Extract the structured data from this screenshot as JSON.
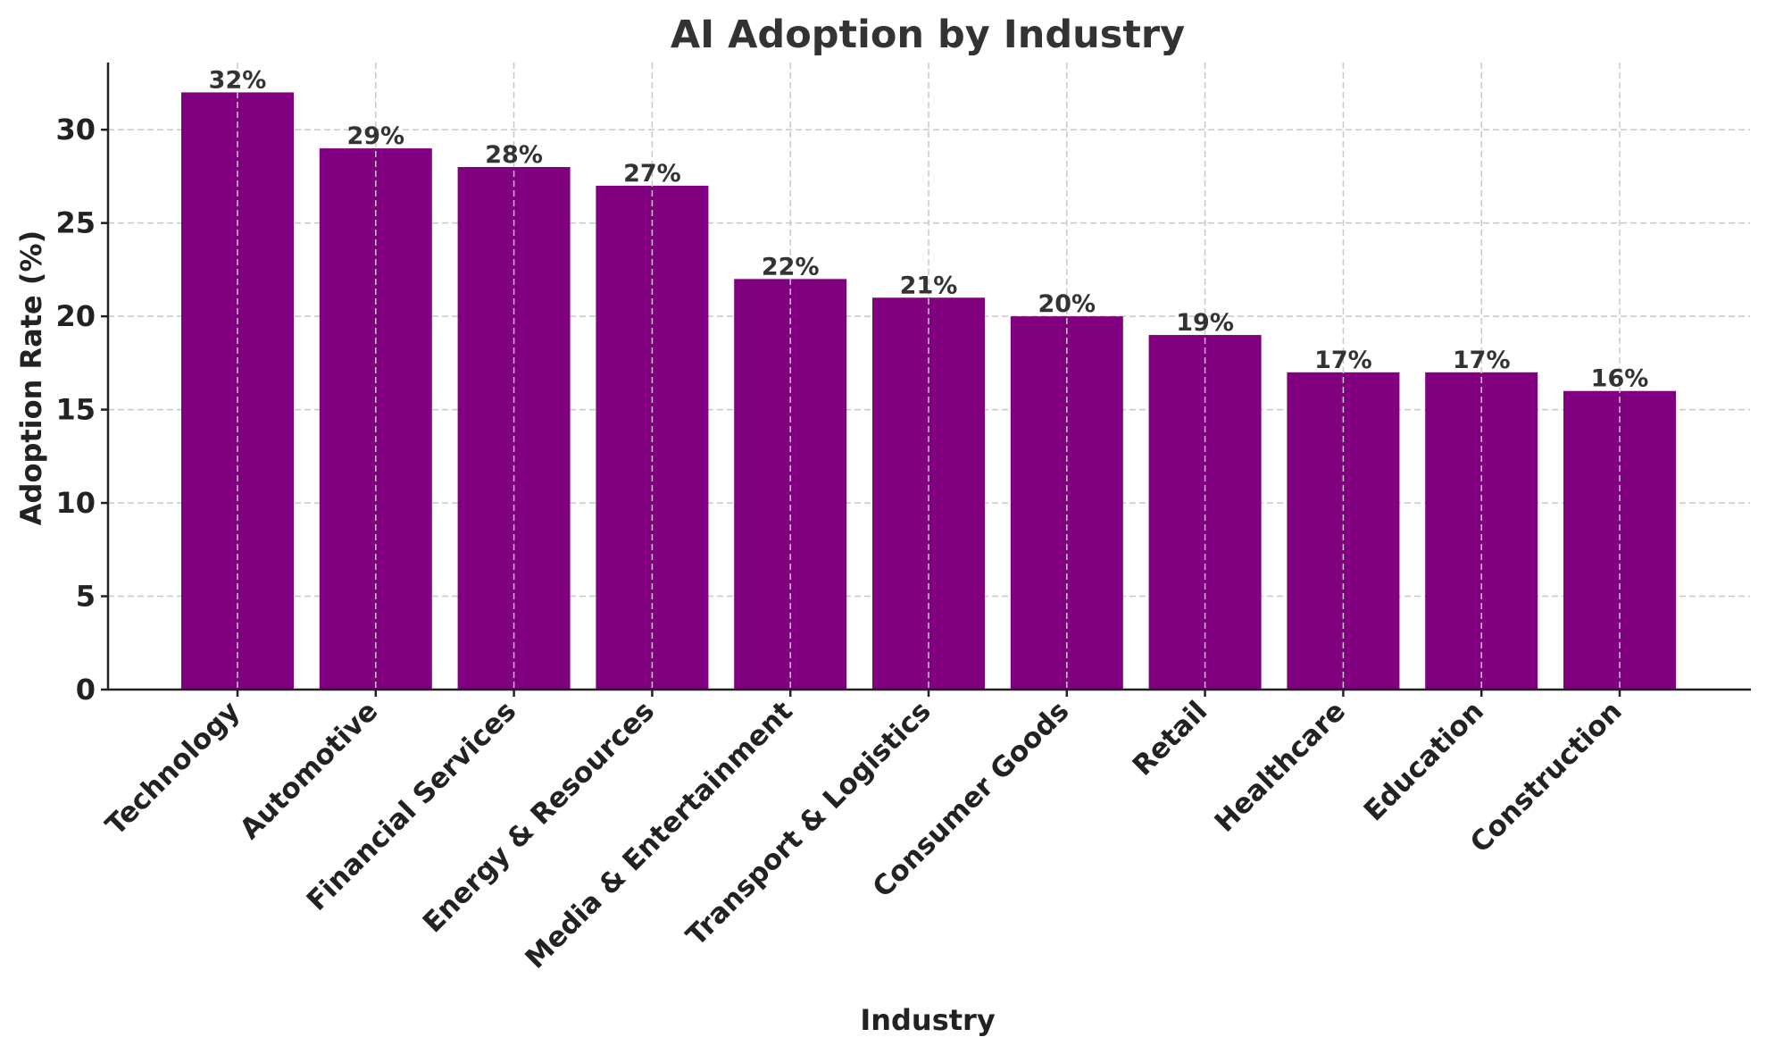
{
  "chart_data": {
    "type": "bar",
    "title": "AI Adoption by Industry",
    "xlabel": "Industry",
    "ylabel": "Adoption Rate (%)",
    "categories": [
      "Technology",
      "Automotive",
      "Financial Services",
      "Energy & Resources",
      "Media & Entertainment",
      "Transport & Logistics",
      "Consumer Goods",
      "Retail",
      "Healthcare",
      "Education",
      "Construction"
    ],
    "values": [
      32,
      29,
      28,
      27,
      22,
      21,
      20,
      19,
      17,
      17,
      16
    ],
    "value_labels": [
      "32%",
      "29%",
      "28%",
      "27%",
      "22%",
      "21%",
      "20%",
      "19%",
      "17%",
      "17%",
      "16%"
    ],
    "yticks": [
      0,
      5,
      10,
      15,
      20,
      25,
      30
    ],
    "ytick_labels": [
      "0",
      "5",
      "10",
      "15",
      "20",
      "25",
      "30"
    ],
    "ylim": [
      0,
      33.6
    ],
    "grid": true,
    "legend": "none",
    "bar_color": "#800080",
    "xtick_rotation": "45deg"
  }
}
